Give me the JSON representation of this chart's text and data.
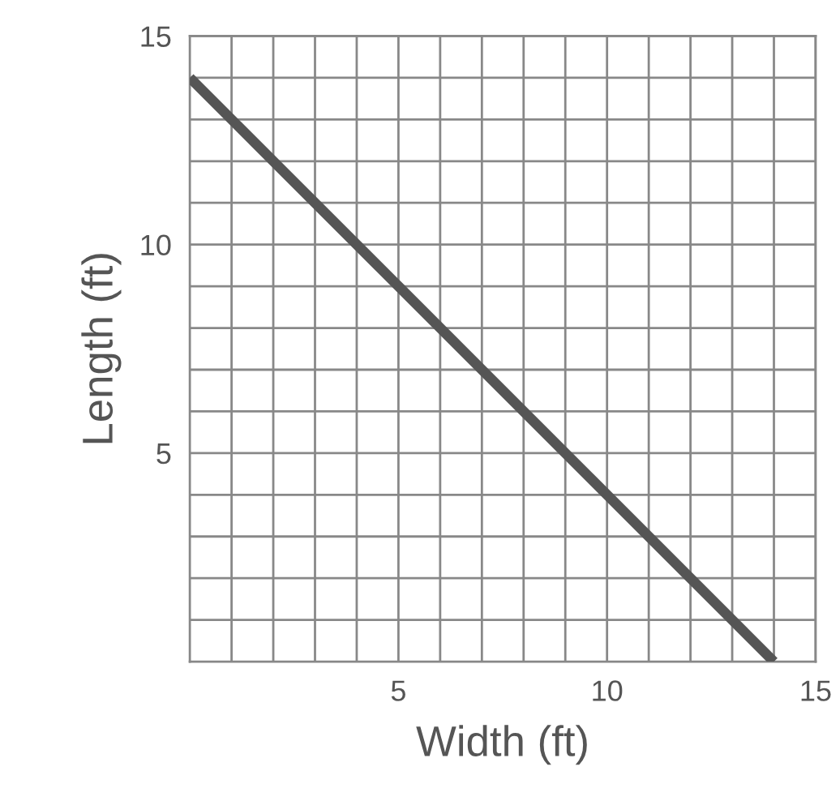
{
  "chart_data": {
    "type": "line",
    "xlabel": "Width (ft)",
    "ylabel": "Length (ft)",
    "x": [
      0,
      14
    ],
    "series": [
      {
        "color": "#555555",
        "values": [
          14,
          0
        ]
      }
    ],
    "xlim": [
      0,
      15
    ],
    "ylim": [
      0,
      15
    ],
    "xticks": [
      {
        "value": 1,
        "label": null
      },
      {
        "value": 2,
        "label": null
      },
      {
        "value": 3,
        "label": null
      },
      {
        "value": 4,
        "label": null
      },
      5,
      {
        "value": 6,
        "label": null
      },
      {
        "value": 7,
        "label": null
      },
      {
        "value": 8,
        "label": null
      },
      {
        "value": 9,
        "label": null
      },
      10,
      {
        "value": 11,
        "label": null
      },
      {
        "value": 12,
        "label": null
      },
      {
        "value": 13,
        "label": null
      },
      {
        "value": 14,
        "label": null
      },
      15
    ],
    "yticks": [
      {
        "value": 1,
        "label": null
      },
      {
        "value": 2,
        "label": null
      },
      {
        "value": 3,
        "label": null
      },
      {
        "value": 4,
        "label": null
      },
      5,
      {
        "value": 6,
        "label": null
      },
      {
        "value": 7,
        "label": null
      },
      {
        "value": 8,
        "label": null
      },
      {
        "value": 9,
        "label": null
      },
      10,
      {
        "value": 11,
        "label": null
      },
      {
        "value": 12,
        "label": null
      },
      {
        "value": 13,
        "label": null
      },
      {
        "value": 14,
        "label": null
      },
      15
    ],
    "grid": true,
    "marker": "none",
    "line_style": "solid",
    "legend": false
  }
}
